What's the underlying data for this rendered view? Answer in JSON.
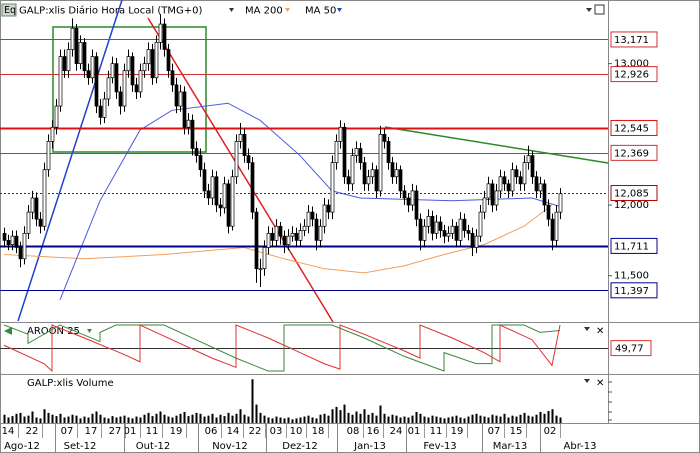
{
  "header": {
    "icon": "Eq",
    "title": "GALP:xlis Diário Hora Local (TMG+0)"
  },
  "chart_data": {
    "type": "candlestick",
    "ylim": [
      11.18,
      13.45
    ],
    "yticks": [
      {
        "value": 13.0,
        "label": "13,000"
      },
      {
        "value": 12.0,
        "label": "12,000"
      },
      {
        "value": 11.5,
        "label": "11,500"
      }
    ],
    "levels": [
      {
        "value": 13.171,
        "label": "13,171",
        "color": "#d03030",
        "style": "solid"
      },
      {
        "value": 12.926,
        "label": "12,926",
        "color": "#d03030",
        "style": "solid"
      },
      {
        "value": 12.545,
        "label": "12,545",
        "color": "#e01010",
        "style": "thick"
      },
      {
        "value": 12.369,
        "label": "12,369",
        "color": "#d03030",
        "style": "solid"
      },
      {
        "value": 12.085,
        "label": "12,085",
        "color": "#b00000",
        "style": "dotted"
      },
      {
        "value": 11.711,
        "label": "11,711",
        "color": "#000090",
        "style": "thick"
      },
      {
        "value": 11.397,
        "label": "11,397",
        "color": "#000080",
        "style": "solid"
      }
    ],
    "ohlc": [
      [
        11.8,
        11.84,
        11.7,
        11.75
      ],
      [
        11.75,
        11.79,
        11.68,
        11.72
      ],
      [
        11.72,
        11.82,
        11.68,
        11.78
      ],
      [
        11.78,
        11.82,
        11.66,
        11.7
      ],
      [
        11.7,
        11.74,
        11.56,
        11.62
      ],
      [
        11.62,
        11.85,
        11.58,
        11.8
      ],
      [
        11.8,
        12.0,
        11.76,
        11.95
      ],
      [
        11.95,
        12.1,
        11.9,
        12.05
      ],
      [
        12.05,
        12.09,
        11.85,
        11.9
      ],
      [
        11.9,
        11.95,
        11.8,
        11.85
      ],
      [
        11.85,
        12.3,
        11.82,
        12.25
      ],
      [
        12.25,
        12.5,
        12.2,
        12.45
      ],
      [
        12.45,
        12.6,
        12.4,
        12.55
      ],
      [
        12.55,
        12.75,
        12.5,
        12.7
      ],
      [
        12.7,
        13.1,
        12.66,
        13.05
      ],
      [
        13.05,
        13.1,
        12.9,
        12.95
      ],
      [
        12.95,
        13.15,
        12.9,
        13.1
      ],
      [
        13.1,
        13.32,
        13.05,
        13.25
      ],
      [
        13.25,
        13.28,
        12.95,
        13.0
      ],
      [
        13.0,
        13.2,
        12.96,
        13.15
      ],
      [
        13.15,
        13.18,
        12.9,
        12.95
      ],
      [
        12.95,
        13.0,
        12.85,
        12.9
      ],
      [
        12.9,
        13.1,
        12.86,
        13.05
      ],
      [
        13.05,
        13.08,
        12.65,
        12.7
      ],
      [
        12.7,
        12.75,
        12.57,
        12.62
      ],
      [
        12.62,
        12.8,
        12.58,
        12.75
      ],
      [
        12.75,
        12.95,
        12.7,
        12.9
      ],
      [
        12.9,
        13.05,
        12.86,
        13.0
      ],
      [
        13.0,
        13.04,
        12.75,
        12.8
      ],
      [
        12.8,
        12.84,
        12.64,
        12.7
      ],
      [
        12.7,
        13.0,
        12.66,
        12.95
      ],
      [
        12.95,
        13.1,
        12.9,
        13.05
      ],
      [
        13.05,
        13.08,
        12.8,
        12.85
      ],
      [
        12.85,
        12.9,
        12.75,
        12.8
      ],
      [
        12.8,
        13.0,
        12.76,
        12.95
      ],
      [
        12.95,
        13.05,
        12.9,
        13.0
      ],
      [
        13.0,
        13.15,
        12.95,
        13.1
      ],
      [
        13.1,
        13.14,
        12.85,
        12.9
      ],
      [
        12.9,
        13.2,
        12.86,
        13.15
      ],
      [
        13.15,
        13.35,
        13.1,
        13.28
      ],
      [
        13.28,
        13.32,
        13.05,
        13.1
      ],
      [
        13.1,
        13.14,
        12.9,
        12.95
      ],
      [
        12.95,
        13.0,
        12.8,
        12.85
      ],
      [
        12.85,
        12.9,
        12.65,
        12.7
      ],
      [
        12.7,
        12.85,
        12.66,
        12.8
      ],
      [
        12.8,
        12.84,
        12.5,
        12.55
      ],
      [
        12.55,
        12.65,
        12.5,
        12.6
      ],
      [
        12.6,
        12.64,
        12.35,
        12.4
      ],
      [
        12.4,
        12.45,
        12.3,
        12.35
      ],
      [
        12.35,
        12.4,
        12.2,
        12.25
      ],
      [
        12.25,
        12.3,
        12.05,
        12.1
      ],
      [
        12.1,
        12.15,
        12.0,
        12.05
      ],
      [
        12.05,
        12.25,
        12.0,
        12.2
      ],
      [
        12.2,
        12.24,
        11.95,
        12.0
      ],
      [
        12.0,
        12.05,
        11.92,
        11.98
      ],
      [
        11.98,
        12.2,
        11.94,
        12.15
      ],
      [
        12.15,
        12.18,
        11.8,
        11.85
      ],
      [
        11.85,
        12.25,
        11.82,
        12.2
      ],
      [
        12.2,
        12.5,
        12.15,
        12.45
      ],
      [
        12.45,
        12.58,
        12.4,
        12.5
      ],
      [
        12.5,
        12.54,
        12.3,
        12.35
      ],
      [
        12.35,
        12.4,
        12.25,
        12.3
      ],
      [
        12.3,
        12.34,
        11.9,
        11.95
      ],
      [
        11.95,
        11.98,
        11.45,
        11.55
      ],
      [
        11.55,
        11.62,
        11.42,
        11.55
      ],
      [
        11.55,
        11.75,
        11.5,
        11.7
      ],
      [
        11.7,
        11.85,
        11.65,
        11.8
      ],
      [
        11.8,
        11.84,
        11.7,
        11.75
      ],
      [
        11.75,
        11.9,
        11.7,
        11.85
      ],
      [
        11.85,
        11.88,
        11.72,
        11.78
      ],
      [
        11.78,
        11.82,
        11.66,
        11.72
      ],
      [
        11.72,
        11.83,
        11.68,
        11.78
      ],
      [
        11.78,
        11.85,
        11.74,
        11.8
      ],
      [
        11.8,
        11.84,
        11.7,
        11.75
      ],
      [
        11.75,
        11.87,
        11.71,
        11.82
      ],
      [
        11.82,
        11.9,
        11.78,
        11.85
      ],
      [
        11.85,
        12.0,
        11.8,
        11.95
      ],
      [
        11.95,
        11.99,
        11.85,
        11.9
      ],
      [
        11.9,
        11.94,
        11.68,
        11.75
      ],
      [
        11.75,
        11.9,
        11.7,
        11.85
      ],
      [
        11.85,
        12.05,
        11.8,
        12.0
      ],
      [
        12.0,
        12.04,
        11.9,
        11.95
      ],
      [
        11.95,
        12.35,
        11.9,
        12.3
      ],
      [
        12.3,
        12.5,
        12.25,
        12.45
      ],
      [
        12.45,
        12.6,
        12.4,
        12.55
      ],
      [
        12.55,
        12.58,
        12.15,
        12.2
      ],
      [
        12.2,
        12.25,
        12.1,
        12.15
      ],
      [
        12.15,
        12.4,
        12.1,
        12.35
      ],
      [
        12.35,
        12.45,
        12.3,
        12.4
      ],
      [
        12.4,
        12.44,
        12.25,
        12.3
      ],
      [
        12.3,
        12.34,
        12.1,
        12.15
      ],
      [
        12.15,
        12.25,
        12.1,
        12.2
      ],
      [
        12.2,
        12.3,
        12.15,
        12.25
      ],
      [
        12.25,
        12.28,
        12.05,
        12.1
      ],
      [
        12.1,
        12.56,
        12.06,
        12.5
      ],
      [
        12.5,
        12.54,
        12.4,
        12.45
      ],
      [
        12.45,
        12.48,
        12.25,
        12.3
      ],
      [
        12.3,
        12.34,
        12.15,
        12.2
      ],
      [
        12.2,
        12.3,
        12.15,
        12.25
      ],
      [
        12.25,
        12.28,
        12.05,
        12.1
      ],
      [
        12.1,
        12.14,
        12.0,
        12.05
      ],
      [
        12.05,
        12.08,
        11.95,
        12.0
      ],
      [
        12.0,
        12.15,
        11.96,
        12.1
      ],
      [
        12.1,
        12.14,
        11.85,
        11.9
      ],
      [
        11.9,
        11.94,
        11.68,
        11.75
      ],
      [
        11.75,
        11.9,
        11.7,
        11.85
      ],
      [
        11.85,
        11.97,
        11.8,
        11.92
      ],
      [
        11.92,
        11.96,
        11.75,
        11.8
      ],
      [
        11.8,
        11.93,
        11.76,
        11.88
      ],
      [
        11.88,
        11.92,
        11.77,
        11.82
      ],
      [
        11.82,
        11.86,
        11.73,
        11.78
      ],
      [
        11.78,
        11.85,
        11.74,
        11.8
      ],
      [
        11.8,
        11.9,
        11.76,
        11.85
      ],
      [
        11.85,
        11.88,
        11.7,
        11.75
      ],
      [
        11.75,
        11.95,
        11.71,
        11.9
      ],
      [
        11.9,
        11.94,
        11.77,
        11.82
      ],
      [
        11.82,
        11.86,
        11.75,
        11.8
      ],
      [
        11.8,
        11.84,
        11.64,
        11.7
      ],
      [
        11.7,
        11.83,
        11.66,
        11.78
      ],
      [
        11.78,
        12.0,
        11.74,
        11.95
      ],
      [
        11.95,
        12.1,
        11.9,
        12.05
      ],
      [
        12.05,
        12.2,
        12.0,
        12.15
      ],
      [
        12.15,
        12.18,
        11.95,
        12.0
      ],
      [
        12.0,
        12.15,
        11.96,
        12.1
      ],
      [
        12.1,
        12.25,
        12.05,
        12.2
      ],
      [
        12.2,
        12.24,
        12.1,
        12.15
      ],
      [
        12.15,
        12.18,
        12.05,
        12.1
      ],
      [
        12.1,
        12.3,
        12.06,
        12.25
      ],
      [
        12.25,
        12.28,
        12.15,
        12.2
      ],
      [
        12.2,
        12.24,
        12.1,
        12.15
      ],
      [
        12.15,
        12.35,
        12.1,
        12.3
      ],
      [
        12.3,
        12.42,
        12.25,
        12.35
      ],
      [
        12.35,
        12.38,
        12.15,
        12.2
      ],
      [
        12.2,
        12.24,
        12.05,
        12.1
      ],
      [
        12.1,
        12.2,
        12.05,
        12.15
      ],
      [
        12.15,
        12.18,
        11.95,
        12.0
      ],
      [
        12.0,
        12.04,
        11.85,
        11.9
      ],
      [
        11.9,
        11.94,
        11.68,
        11.75
      ],
      [
        11.75,
        12.0,
        11.7,
        11.95
      ],
      [
        11.95,
        12.12,
        11.9,
        12.08
      ]
    ],
    "series": [
      {
        "name": "MA 200",
        "color": "#f0a060",
        "x": [
          0,
          20,
          40,
          60,
          70,
          80,
          90,
          100,
          110,
          120,
          130,
          137
        ],
        "values": [
          11.65,
          11.62,
          11.65,
          11.7,
          11.62,
          11.55,
          11.52,
          11.57,
          11.65,
          11.72,
          11.85,
          12.0
        ]
      },
      {
        "name": "MA 50",
        "color": "#4a5ad8",
        "x": [
          14,
          24,
          34,
          42,
          56,
          64,
          74,
          82,
          89,
          112,
          132,
          139
        ],
        "values": [
          11.33,
          12.03,
          12.53,
          12.67,
          12.72,
          12.6,
          12.35,
          12.1,
          12.05,
          12.03,
          12.05,
          11.99
        ]
      }
    ],
    "day_labels": [
      "14",
      "22",
      "07",
      "17",
      "27",
      "01",
      "11",
      "19",
      "06",
      "14",
      "22",
      "03",
      "10",
      "18",
      "08",
      "16",
      "24",
      "01",
      "11",
      "19",
      "07",
      "15",
      "02"
    ],
    "month_labels": [
      "Ago-12",
      "Set-12",
      "Out-12",
      "Nov-12",
      "Dez-12",
      "Jan-13",
      "Fev-13",
      "Mar-13",
      "Abr-13"
    ],
    "aroon": {
      "title": "AROON 25",
      "ylim": [
        0,
        100
      ],
      "series": [
        {
          "color": "#3a8a3a",
          "x": [
            0,
            6,
            6,
            14,
            24,
            24,
            28,
            40,
            48,
            58,
            66,
            70,
            70,
            82,
            90,
            100,
            110,
            110,
            118,
            122,
            122,
            130,
            134,
            139
          ],
          "values": [
            100,
            80,
            60,
            100,
            64,
            84,
            100,
            100,
            68,
            28,
            0,
            0,
            100,
            100,
            72,
            32,
            0,
            40,
            16,
            16,
            100,
            100,
            84,
            88
          ]
        },
        {
          "color": "#e03030",
          "x": [
            0,
            10,
            12,
            12,
            20,
            30,
            34,
            34,
            44,
            52,
            58,
            58,
            66,
            74,
            80,
            84,
            84,
            90,
            100,
            104,
            104,
            112,
            120,
            124,
            124,
            132,
            137,
            139
          ],
          "values": [
            56,
            16,
            0,
            100,
            72,
            36,
            20,
            100,
            60,
            28,
            8,
            100,
            72,
            40,
            16,
            4,
            100,
            80,
            44,
            28,
            100,
            72,
            40,
            20,
            100,
            68,
            12,
            100
          ]
        }
      ],
      "last": {
        "value": 49.77,
        "label": "49,77"
      }
    },
    "volume": {
      "title": "GALP:xlis Volume",
      "ylim": [
        0,
        100
      ],
      "values": [
        18,
        12,
        15,
        20,
        22,
        14,
        16,
        25,
        12,
        10,
        30,
        22,
        18,
        15,
        20,
        12,
        14,
        18,
        16,
        10,
        14,
        12,
        20,
        25,
        18,
        12,
        10,
        15,
        12,
        14,
        16,
        12,
        10,
        14,
        12,
        18,
        22,
        15,
        20,
        25,
        18,
        14,
        12,
        16,
        20,
        24,
        15,
        18,
        22,
        20,
        14,
        16,
        20,
        12,
        18,
        15,
        22,
        16,
        20,
        30,
        18,
        14,
        95,
        40,
        22,
        16,
        12,
        10,
        14,
        12,
        10,
        12,
        8,
        10,
        12,
        14,
        16,
        12,
        10,
        18,
        20,
        16,
        30,
        35,
        28,
        40,
        22,
        18,
        25,
        20,
        30,
        18,
        22,
        16,
        38,
        20,
        14,
        18,
        16,
        12,
        14,
        12,
        16,
        24,
        20,
        14,
        12,
        16,
        14,
        12,
        10,
        12,
        14,
        16,
        12,
        10,
        14,
        18,
        20,
        16,
        14,
        12,
        18,
        16,
        14,
        20,
        12,
        16,
        14,
        18,
        22,
        16,
        14,
        18,
        24,
        20,
        26,
        30,
        16,
        12
      ]
    }
  }
}
